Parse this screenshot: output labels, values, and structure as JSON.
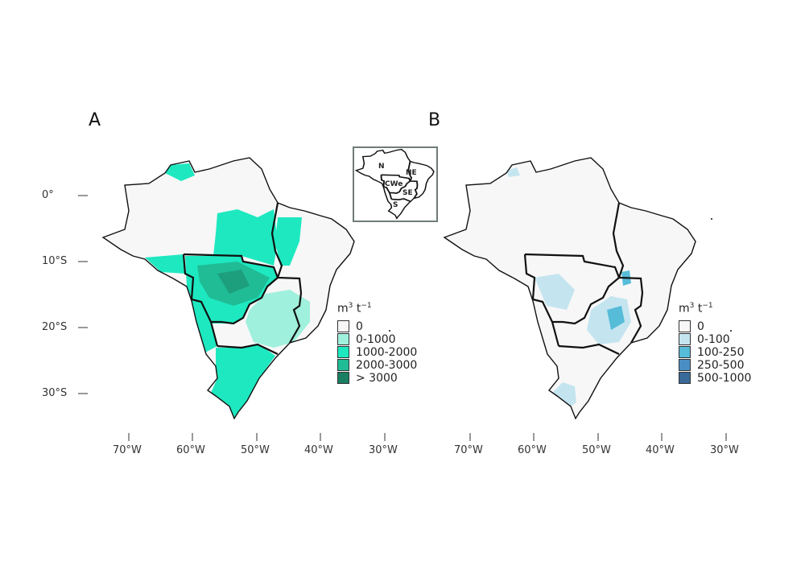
{
  "panels": [
    {
      "label": "A",
      "legend": {
        "title_base": "m",
        "title_exp1": "3",
        "title_mid": " t",
        "title_exp2": "−1",
        "items": [
          {
            "label": "0",
            "color": "#f7f7f7"
          },
          {
            "label": "0-1000",
            "color": "#9ff0dc"
          },
          {
            "label": "1000-2000",
            "color": "#1ee8c0"
          },
          {
            "label": "2000-3000",
            "color": "#1fbc96"
          },
          {
            "label": "> 3000",
            "color": "#1b7f63"
          }
        ]
      }
    },
    {
      "label": "B",
      "legend": {
        "title_base": "m",
        "title_exp1": "3",
        "title_mid": " t",
        "title_exp2": "−1",
        "items": [
          {
            "label": "0",
            "color": "#f7f7f7"
          },
          {
            "label": "0-100",
            "color": "#c4e5f0"
          },
          {
            "label": "100-250",
            "color": "#56bcd8"
          },
          {
            "label": "250-500",
            "color": "#4a8fc4"
          },
          {
            "label": "500-1000",
            "color": "#3a6a98"
          }
        ]
      }
    }
  ],
  "y_ticks": [
    "0°",
    "10°S",
    "20°S",
    "30°S"
  ],
  "x_ticks": [
    "70°W",
    "60°W",
    "50°W",
    "40°W",
    "30°W"
  ],
  "inset": {
    "regions": [
      "N",
      "NE",
      "CWe",
      "SE",
      "S"
    ]
  }
}
